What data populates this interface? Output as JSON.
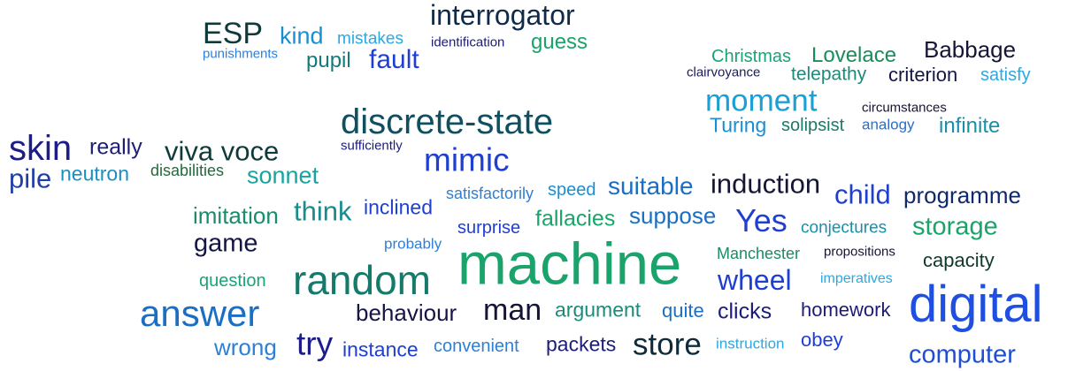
{
  "palette": {
    "navy": "#1c1c7a",
    "blue": "#1f3fd1",
    "mid_blue": "#1a6fc4",
    "sky": "#2ea8df",
    "teal": "#1a8c8c",
    "dark_teal": "#0f4f5f",
    "green": "#1aa36a",
    "dark_green": "#226b3a"
  },
  "words": [
    {
      "text": "interrogator"
    },
    {
      "text": "ESP"
    },
    {
      "text": "kind"
    },
    {
      "text": "mistakes"
    },
    {
      "text": "identification"
    },
    {
      "text": "guess"
    },
    {
      "text": "punishments"
    },
    {
      "text": "pupil"
    },
    {
      "text": "fault"
    },
    {
      "text": "Christmas"
    },
    {
      "text": "Lovelace"
    },
    {
      "text": "Babbage"
    },
    {
      "text": "clairvoyance"
    },
    {
      "text": "telepathy"
    },
    {
      "text": "criterion"
    },
    {
      "text": "satisfy"
    },
    {
      "text": "moment"
    },
    {
      "text": "circumstances"
    },
    {
      "text": "Turing"
    },
    {
      "text": "solipsist"
    },
    {
      "text": "analogy"
    },
    {
      "text": "infinite"
    },
    {
      "text": "discrete-state"
    },
    {
      "text": "sufficiently"
    },
    {
      "text": "skin"
    },
    {
      "text": "really"
    },
    {
      "text": "viva voce"
    },
    {
      "text": "mimic"
    },
    {
      "text": "pile"
    },
    {
      "text": "neutron"
    },
    {
      "text": "disabilities"
    },
    {
      "text": "sonnet"
    },
    {
      "text": "satisfactorily"
    },
    {
      "text": "speed"
    },
    {
      "text": "suitable"
    },
    {
      "text": "induction"
    },
    {
      "text": "child"
    },
    {
      "text": "programme"
    },
    {
      "text": "imitation"
    },
    {
      "text": "think"
    },
    {
      "text": "inclined"
    },
    {
      "text": "surprise"
    },
    {
      "text": "fallacies"
    },
    {
      "text": "suppose"
    },
    {
      "text": "Yes"
    },
    {
      "text": "conjectures"
    },
    {
      "text": "storage"
    },
    {
      "text": "game"
    },
    {
      "text": "probably"
    },
    {
      "text": "machine"
    },
    {
      "text": "Manchester"
    },
    {
      "text": "propositions"
    },
    {
      "text": "capacity"
    },
    {
      "text": "random"
    },
    {
      "text": "question"
    },
    {
      "text": "wheel"
    },
    {
      "text": "imperatives"
    },
    {
      "text": "digital"
    },
    {
      "text": "answer"
    },
    {
      "text": "behaviour"
    },
    {
      "text": "man"
    },
    {
      "text": "argument"
    },
    {
      "text": "quite"
    },
    {
      "text": "clicks"
    },
    {
      "text": "homework"
    },
    {
      "text": "wrong"
    },
    {
      "text": "try"
    },
    {
      "text": "instance"
    },
    {
      "text": "convenient"
    },
    {
      "text": "packets"
    },
    {
      "text": "store"
    },
    {
      "text": "instruction"
    },
    {
      "text": "obey"
    },
    {
      "text": "computer"
    }
  ]
}
